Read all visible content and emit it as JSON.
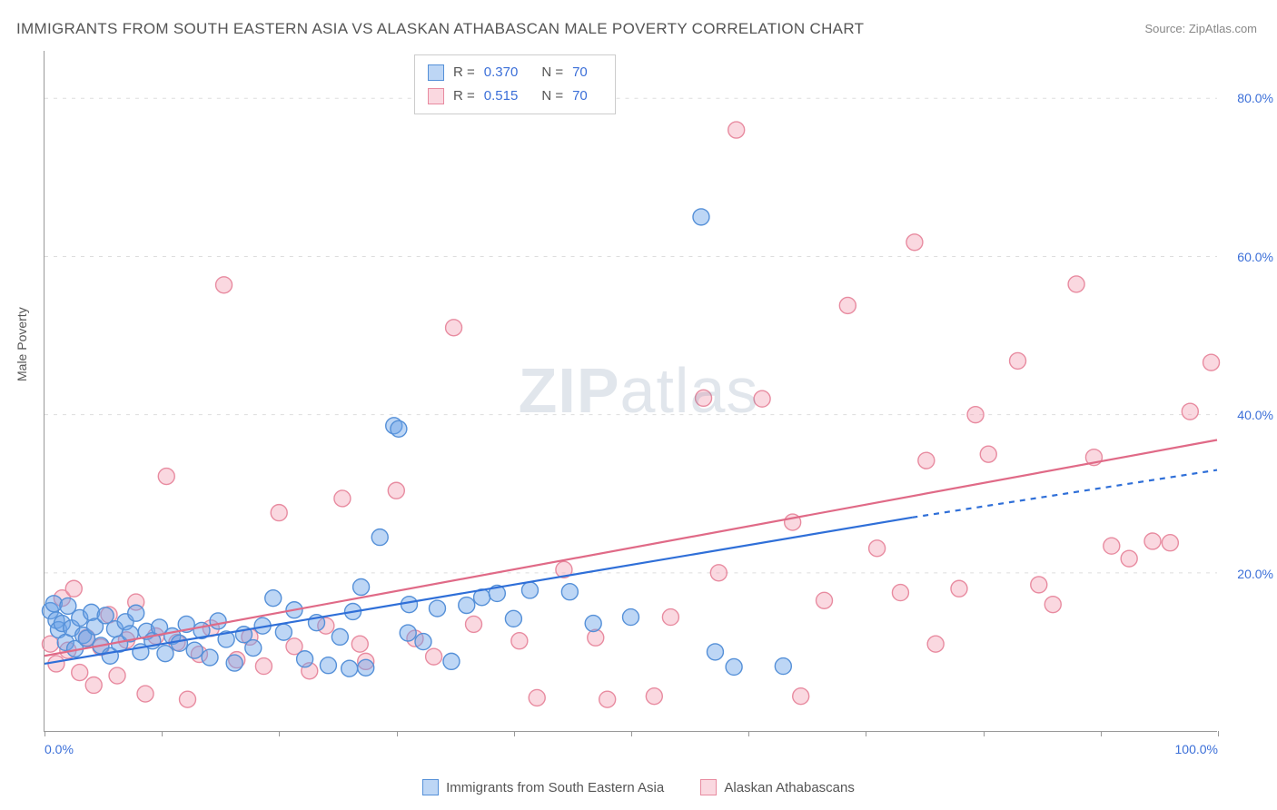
{
  "title": "IMMIGRANTS FROM SOUTH EASTERN ASIA VS ALASKAN ATHABASCAN MALE POVERTY CORRELATION CHART",
  "source": "Source: ZipAtlas.com",
  "y_axis_label": "Male Poverty",
  "watermark_bold": "ZIP",
  "watermark_rest": "atlas",
  "chart": {
    "type": "scatter-with-regression",
    "background_color": "#ffffff",
    "grid_color": "#dddddd",
    "axis_color": "#999999",
    "tick_label_color": "#3b6fd8",
    "axis_label_color": "#555555",
    "xlim": [
      0,
      100
    ],
    "ylim": [
      0,
      86
    ],
    "x_ticks": [
      0,
      10,
      20,
      30,
      40,
      50,
      60,
      70,
      80,
      90,
      100
    ],
    "x_tick_labels": {
      "0": "0.0%",
      "100": "100.0%"
    },
    "y_ticks": [
      20,
      40,
      60,
      80
    ],
    "y_tick_labels": {
      "20": "20.0%",
      "40": "40.0%",
      "60": "60.0%",
      "80": "80.0%"
    },
    "marker_radius": 9,
    "marker_opacity": 0.55,
    "line_width": 2.2,
    "series": [
      {
        "id": "immigrants_se_asia",
        "label": "Immigrants from South Eastern Asia",
        "color": "#6da3e8",
        "fill": "rgba(109,163,232,0.45)",
        "stroke": "#5590d8",
        "line_color": "#2f6fd8",
        "R": "0.370",
        "N": "70",
        "regression": {
          "x1": 0,
          "y1": 8.5,
          "x2": 74,
          "y2": 27.0,
          "x2_dash": 100,
          "y2_dash": 33.0
        },
        "points": [
          [
            0.5,
            15.2
          ],
          [
            0.8,
            16.1
          ],
          [
            1.0,
            14.0
          ],
          [
            1.2,
            12.8
          ],
          [
            1.5,
            13.6
          ],
          [
            1.8,
            11.2
          ],
          [
            2.0,
            15.8
          ],
          [
            2.3,
            13.0
          ],
          [
            2.6,
            10.4
          ],
          [
            3.0,
            14.3
          ],
          [
            3.3,
            12.1
          ],
          [
            3.6,
            11.7
          ],
          [
            4.0,
            15.0
          ],
          [
            4.3,
            13.2
          ],
          [
            4.8,
            10.8
          ],
          [
            5.2,
            14.6
          ],
          [
            5.6,
            9.5
          ],
          [
            6.0,
            12.9
          ],
          [
            6.4,
            11.0
          ],
          [
            6.9,
            13.8
          ],
          [
            7.3,
            12.3
          ],
          [
            7.8,
            14.9
          ],
          [
            8.2,
            10.0
          ],
          [
            8.7,
            12.6
          ],
          [
            9.2,
            11.4
          ],
          [
            9.8,
            13.1
          ],
          [
            10.3,
            9.8
          ],
          [
            10.9,
            12.0
          ],
          [
            11.5,
            11.1
          ],
          [
            12.1,
            13.5
          ],
          [
            12.8,
            10.2
          ],
          [
            13.4,
            12.7
          ],
          [
            14.1,
            9.3
          ],
          [
            14.8,
            13.9
          ],
          [
            15.5,
            11.6
          ],
          [
            16.2,
            8.6
          ],
          [
            17.0,
            12.2
          ],
          [
            17.8,
            10.5
          ],
          [
            18.6,
            13.3
          ],
          [
            19.5,
            16.8
          ],
          [
            20.4,
            12.5
          ],
          [
            21.3,
            15.3
          ],
          [
            22.2,
            9.1
          ],
          [
            23.2,
            13.7
          ],
          [
            24.2,
            8.3
          ],
          [
            25.2,
            11.9
          ],
          [
            26.0,
            7.9
          ],
          [
            26.3,
            15.1
          ],
          [
            27.0,
            18.2
          ],
          [
            27.4,
            8.0
          ],
          [
            28.6,
            24.5
          ],
          [
            29.8,
            38.6
          ],
          [
            30.2,
            38.2
          ],
          [
            31.0,
            12.4
          ],
          [
            31.1,
            16.0
          ],
          [
            32.3,
            11.3
          ],
          [
            33.5,
            15.5
          ],
          [
            34.7,
            8.8
          ],
          [
            36.0,
            15.9
          ],
          [
            37.3,
            16.9
          ],
          [
            38.6,
            17.4
          ],
          [
            40.0,
            14.2
          ],
          [
            41.4,
            17.8
          ],
          [
            44.8,
            17.6
          ],
          [
            46.8,
            13.6
          ],
          [
            50.0,
            14.4
          ],
          [
            56.0,
            65.0
          ],
          [
            57.2,
            10.0
          ],
          [
            58.8,
            8.1
          ],
          [
            63.0,
            8.2
          ]
        ]
      },
      {
        "id": "alaskan_athabascans",
        "label": "Alaskan Athabascans",
        "color": "#f2a3b5",
        "fill": "rgba(242,163,181,0.42)",
        "stroke": "#e88ba0",
        "line_color": "#e06a87",
        "R": "0.515",
        "N": "70",
        "regression": {
          "x1": 0,
          "y1": 9.5,
          "x2": 100,
          "y2": 36.8
        },
        "points": [
          [
            0.5,
            11.0
          ],
          [
            1.0,
            8.5
          ],
          [
            1.5,
            16.8
          ],
          [
            2.0,
            10.2
          ],
          [
            2.5,
            18.0
          ],
          [
            3.0,
            7.4
          ],
          [
            3.6,
            11.8
          ],
          [
            4.2,
            5.8
          ],
          [
            4.8,
            10.6
          ],
          [
            5.5,
            14.7
          ],
          [
            6.2,
            7.0
          ],
          [
            7.0,
            11.5
          ],
          [
            7.8,
            16.3
          ],
          [
            8.6,
            4.7
          ],
          [
            9.5,
            12.0
          ],
          [
            10.4,
            32.2
          ],
          [
            11.3,
            11.2
          ],
          [
            12.2,
            4.0
          ],
          [
            13.2,
            9.7
          ],
          [
            14.2,
            13.0
          ],
          [
            15.3,
            56.4
          ],
          [
            16.4,
            9.0
          ],
          [
            17.5,
            11.9
          ],
          [
            18.7,
            8.2
          ],
          [
            20.0,
            27.6
          ],
          [
            21.3,
            10.7
          ],
          [
            22.6,
            7.6
          ],
          [
            24.0,
            13.3
          ],
          [
            25.4,
            29.4
          ],
          [
            26.9,
            11.0
          ],
          [
            27.4,
            8.8
          ],
          [
            30.0,
            30.4
          ],
          [
            31.6,
            11.7
          ],
          [
            33.2,
            9.4
          ],
          [
            34.9,
            51.0
          ],
          [
            36.6,
            13.5
          ],
          [
            40.5,
            11.4
          ],
          [
            42.0,
            4.2
          ],
          [
            44.3,
            20.4
          ],
          [
            47.0,
            11.8
          ],
          [
            48.0,
            4.0
          ],
          [
            52.0,
            4.4
          ],
          [
            53.4,
            14.4
          ],
          [
            56.2,
            42.1
          ],
          [
            57.5,
            20.0
          ],
          [
            59.0,
            76.0
          ],
          [
            61.2,
            42.0
          ],
          [
            63.8,
            26.4
          ],
          [
            64.5,
            4.4
          ],
          [
            66.5,
            16.5
          ],
          [
            68.5,
            53.8
          ],
          [
            71.0,
            23.1
          ],
          [
            73.0,
            17.5
          ],
          [
            74.2,
            61.8
          ],
          [
            75.2,
            34.2
          ],
          [
            76.0,
            11.0
          ],
          [
            78.0,
            18.0
          ],
          [
            79.4,
            40.0
          ],
          [
            80.5,
            35.0
          ],
          [
            83.0,
            46.8
          ],
          [
            84.8,
            18.5
          ],
          [
            86.0,
            16.0
          ],
          [
            88.0,
            56.5
          ],
          [
            89.5,
            34.6
          ],
          [
            91.0,
            23.4
          ],
          [
            92.5,
            21.8
          ],
          [
            94.5,
            24.0
          ],
          [
            96.0,
            23.8
          ],
          [
            97.7,
            40.4
          ],
          [
            99.5,
            46.6
          ]
        ]
      }
    ]
  },
  "stats_legend": {
    "R_label": "R =",
    "N_label": "N ="
  }
}
